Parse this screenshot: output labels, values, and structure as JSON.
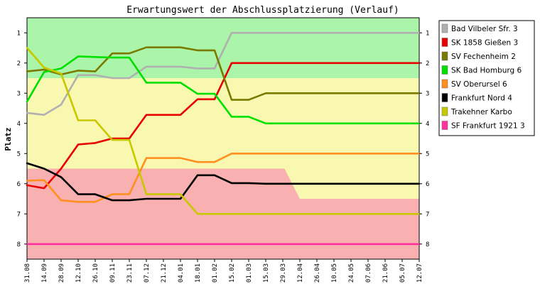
{
  "chart_data": {
    "type": "line",
    "title": "Erwartungswert der Abschlussplatzierung (Verlauf)",
    "ylabel": "Platz",
    "xlabel": "",
    "ylim": [
      0.5,
      8.5
    ],
    "y_inverted": true,
    "y_ticks": [
      "1",
      "2",
      "3",
      "4",
      "5",
      "6",
      "7",
      "8"
    ],
    "categories": [
      "31.08",
      "14.09",
      "28.09",
      "12.10",
      "26.10",
      "09.11",
      "23.11",
      "07.12",
      "21.12",
      "04.01",
      "18.01",
      "01.02",
      "15.02",
      "01.03",
      "15.03",
      "29.03",
      "12.04",
      "26.04",
      "10.05",
      "24.05",
      "07.06",
      "21.06",
      "05.07",
      "12.07"
    ],
    "grid": false,
    "legend_position": "right",
    "bands": [
      {
        "color": "#aaf5aa",
        "from": 0.5,
        "to": 2.5
      },
      {
        "color": "#f8f8b0",
        "from": 2.5,
        "to": 5.5
      },
      {
        "color": "#f8b0b0",
        "from": 5.5,
        "to": 8.5
      }
    ],
    "series": [
      {
        "name": "Bad Vilbeler Sfr. 3",
        "color": "#b0b0b0",
        "values": [
          3.65,
          3.72,
          3.38,
          2.4,
          2.4,
          2.5,
          2.5,
          2.12,
          2.12,
          2.12,
          2.18,
          2.18,
          1.0,
          1.0,
          1.0,
          1.0,
          1.0,
          1.0,
          1.0,
          1.0,
          1.0,
          1.0,
          1.0,
          1.0
        ]
      },
      {
        "name": "SK 1858 Gießen 3",
        "color": "#e80000",
        "values": [
          6.05,
          6.15,
          5.5,
          4.7,
          4.65,
          4.5,
          4.5,
          3.72,
          3.72,
          3.72,
          3.2,
          3.2,
          2.0,
          2.0,
          2.0,
          2.0,
          2.0,
          2.0,
          2.0,
          2.0,
          2.0,
          2.0,
          2.0,
          2.0
        ]
      },
      {
        "name": "SV Fechenheim 2",
        "color": "#7a7a00",
        "values": [
          2.28,
          2.22,
          2.38,
          2.25,
          2.28,
          1.68,
          1.68,
          1.48,
          1.48,
          1.48,
          1.58,
          1.58,
          3.22,
          3.22,
          3.0,
          3.0,
          3.0,
          3.0,
          3.0,
          3.0,
          3.0,
          3.0,
          3.0,
          3.0
        ]
      },
      {
        "name": "SK Bad Homburg 6",
        "color": "#00e000",
        "values": [
          3.28,
          2.3,
          2.18,
          1.78,
          1.8,
          1.82,
          1.82,
          2.65,
          2.65,
          2.65,
          3.02,
          3.02,
          3.78,
          3.78,
          4.0,
          4.0,
          4.0,
          4.0,
          4.0,
          4.0,
          4.0,
          4.0,
          4.0,
          4.0
        ]
      },
      {
        "name": "SV Oberursel 6",
        "color": "#ff9020",
        "values": [
          5.9,
          5.88,
          6.55,
          6.6,
          6.6,
          6.35,
          6.35,
          5.15,
          5.15,
          5.15,
          5.28,
          5.28,
          5.0,
          5.0,
          5.0,
          5.0,
          5.0,
          5.0,
          5.0,
          5.0,
          5.0,
          5.0,
          5.0,
          5.0
        ]
      },
      {
        "name": "Frankfurt Nord 4",
        "color": "#000000",
        "values": [
          5.32,
          5.5,
          5.78,
          6.35,
          6.35,
          6.55,
          6.55,
          6.5,
          6.5,
          6.5,
          5.72,
          5.72,
          5.98,
          5.98,
          6.0,
          6.0,
          6.0,
          6.0,
          6.0,
          6.0,
          6.0,
          6.0,
          6.0,
          6.0
        ]
      },
      {
        "name": "Trakehner Karbo",
        "color": "#c8c800",
        "values": [
          1.5,
          2.15,
          2.35,
          3.9,
          3.9,
          4.55,
          4.55,
          6.35,
          6.35,
          6.35,
          7.0,
          7.0,
          7.0,
          7.0,
          7.0,
          7.0,
          7.0,
          7.0,
          7.0,
          7.0,
          7.0,
          7.0,
          7.0,
          7.0
        ]
      },
      {
        "name": "SF Frankfurt 1921 3",
        "color": "#ff30a0",
        "values": [
          8,
          8,
          8,
          8,
          8,
          8,
          8,
          8,
          8,
          8,
          8,
          8,
          8,
          8,
          8,
          8,
          8,
          8,
          8,
          8,
          8,
          8,
          8,
          8
        ]
      }
    ]
  }
}
